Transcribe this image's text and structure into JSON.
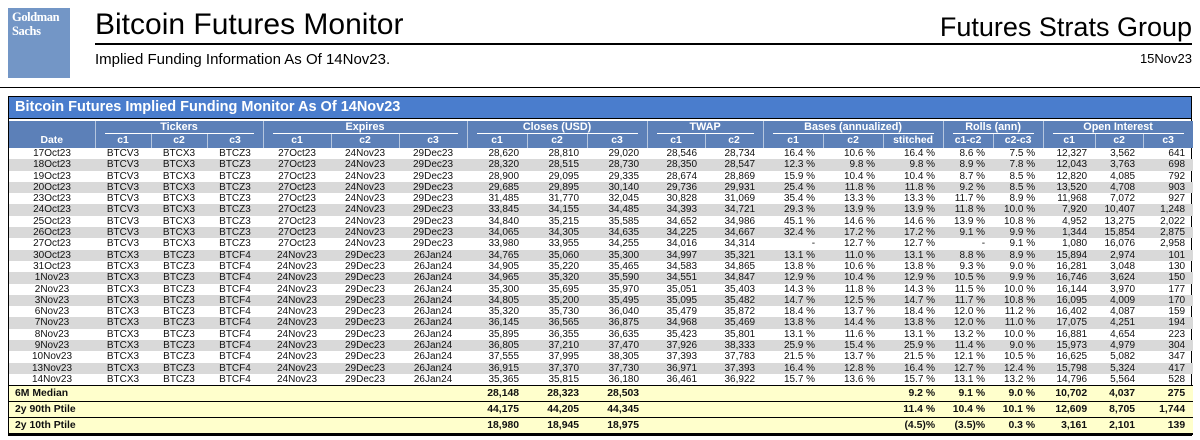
{
  "page": {
    "logo_line1": "Goldman",
    "logo_line2": "Sachs",
    "title": "Bitcoin Futures Monitor",
    "subtitle": "Implied Funding Information As Of 14Nov23.",
    "right_title": "Futures Strats Group",
    "right_date": "15Nov23"
  },
  "colors": {
    "brand_blue": "#7396c6",
    "title_bar_blue": "#4a7dcd",
    "header_blue": "#5c80b8",
    "stripe_gray": "#d9d9d9",
    "summary_yellow": "#ffffcc"
  },
  "monitor": {
    "title": "Bitcoin Futures Implied Funding Monitor As Of 14Nov23",
    "groups": [
      {
        "label": "",
        "span": 1
      },
      {
        "label": "Tickers",
        "span": 3
      },
      {
        "label": "Expires",
        "span": 3
      },
      {
        "label": "Closes (USD)",
        "span": 3
      },
      {
        "label": "TWAP",
        "span": 2
      },
      {
        "label": "Bases (annualized)",
        "span": 3
      },
      {
        "label": "Rolls (ann)",
        "span": 2
      },
      {
        "label": "Open Interest",
        "span": 3
      }
    ],
    "columns": [
      "Date",
      "c1",
      "c2",
      "c3",
      "c1",
      "c2",
      "c3",
      "c1",
      "c2",
      "c3",
      "c1",
      "c2",
      "c1",
      "c2",
      "stitched",
      "c1-c2",
      "c2-c3",
      "c1",
      "c2",
      "c3"
    ],
    "rows": [
      [
        "17Oct23",
        "BTCV3",
        "BTCX3",
        "BTCZ3",
        "27Oct23",
        "24Nov23",
        "29Dec23",
        "28,620",
        "28,810",
        "29,020",
        "28,546",
        "28,734",
        "16.4 %",
        "10.6 %",
        "16.4 %",
        "8.6 %",
        "7.5 %",
        "12,327",
        "3,562",
        "641"
      ],
      [
        "18Oct23",
        "BTCV3",
        "BTCX3",
        "BTCZ3",
        "27Oct23",
        "24Nov23",
        "29Dec23",
        "28,320",
        "28,515",
        "28,730",
        "28,350",
        "28,547",
        "12.3 %",
        "9.8 %",
        "9.8 %",
        "8.9 %",
        "7.8 %",
        "12,043",
        "3,763",
        "698"
      ],
      [
        "19Oct23",
        "BTCV3",
        "BTCX3",
        "BTCZ3",
        "27Oct23",
        "24Nov23",
        "29Dec23",
        "28,900",
        "29,095",
        "29,335",
        "28,674",
        "28,869",
        "15.9 %",
        "10.4 %",
        "10.4 %",
        "8.7 %",
        "8.5 %",
        "12,820",
        "4,085",
        "792"
      ],
      [
        "20Oct23",
        "BTCV3",
        "BTCX3",
        "BTCZ3",
        "27Oct23",
        "24Nov23",
        "29Dec23",
        "29,685",
        "29,895",
        "30,140",
        "29,736",
        "29,931",
        "25.4 %",
        "11.8 %",
        "11.8 %",
        "9.2 %",
        "8.5 %",
        "13,520",
        "4,708",
        "903"
      ],
      [
        "23Oct23",
        "BTCV3",
        "BTCX3",
        "BTCZ3",
        "27Oct23",
        "24Nov23",
        "29Dec23",
        "31,485",
        "31,770",
        "32,045",
        "30,828",
        "31,069",
        "35.4 %",
        "13.3 %",
        "13.3 %",
        "11.7 %",
        "8.9 %",
        "11,968",
        "7,072",
        "927"
      ],
      [
        "24Oct23",
        "BTCV3",
        "BTCX3",
        "BTCZ3",
        "27Oct23",
        "24Nov23",
        "29Dec23",
        "33,845",
        "34,155",
        "34,485",
        "34,393",
        "34,721",
        "29.3 %",
        "13.9 %",
        "13.9 %",
        "11.8 %",
        "10.0 %",
        "7,920",
        "10,407",
        "1,248"
      ],
      [
        "25Oct23",
        "BTCV3",
        "BTCX3",
        "BTCZ3",
        "27Oct23",
        "24Nov23",
        "29Dec23",
        "34,840",
        "35,215",
        "35,585",
        "34,652",
        "34,986",
        "45.1 %",
        "14.6 %",
        "14.6 %",
        "13.9 %",
        "10.8 %",
        "4,952",
        "13,275",
        "2,022"
      ],
      [
        "26Oct23",
        "BTCV3",
        "BTCX3",
        "BTCZ3",
        "27Oct23",
        "24Nov23",
        "29Dec23",
        "34,065",
        "34,305",
        "34,635",
        "34,225",
        "34,667",
        "32.4 %",
        "17.2 %",
        "17.2 %",
        "9.1 %",
        "9.9 %",
        "1,344",
        "15,854",
        "2,875"
      ],
      [
        "27Oct23",
        "BTCV3",
        "BTCX3",
        "BTCZ3",
        "27Oct23",
        "24Nov23",
        "29Dec23",
        "33,980",
        "33,955",
        "34,255",
        "34,016",
        "34,314",
        "-",
        "12.7 %",
        "12.7 %",
        "-",
        "9.1 %",
        "1,080",
        "16,076",
        "2,958"
      ],
      [
        "30Oct23",
        "BTCX3",
        "BTCZ3",
        "BTCF4",
        "24Nov23",
        "29Dec23",
        "26Jan24",
        "34,765",
        "35,060",
        "35,300",
        "34,997",
        "35,321",
        "13.1 %",
        "11.0 %",
        "13.1 %",
        "8.8 %",
        "8.9 %",
        "15,894",
        "2,974",
        "101"
      ],
      [
        "31Oct23",
        "BTCX3",
        "BTCZ3",
        "BTCF4",
        "24Nov23",
        "29Dec23",
        "26Jan24",
        "34,905",
        "35,220",
        "35,465",
        "34,583",
        "34,865",
        "13.8 %",
        "10.6 %",
        "13.8 %",
        "9.3 %",
        "9.0 %",
        "16,281",
        "3,048",
        "130"
      ],
      [
        "1Nov23",
        "BTCX3",
        "BTCZ3",
        "BTCF4",
        "24Nov23",
        "29Dec23",
        "26Jan24",
        "34,965",
        "35,320",
        "35,590",
        "34,551",
        "34,847",
        "12.9 %",
        "10.4 %",
        "12.9 %",
        "10.5 %",
        "9.9 %",
        "16,746",
        "3,624",
        "150"
      ],
      [
        "2Nov23",
        "BTCX3",
        "BTCZ3",
        "BTCF4",
        "24Nov23",
        "29Dec23",
        "26Jan24",
        "35,300",
        "35,695",
        "35,970",
        "35,051",
        "35,403",
        "14.3 %",
        "11.8 %",
        "14.3 %",
        "11.5 %",
        "10.0 %",
        "16,144",
        "3,970",
        "177"
      ],
      [
        "3Nov23",
        "BTCX3",
        "BTCZ3",
        "BTCF4",
        "24Nov23",
        "29Dec23",
        "26Jan24",
        "34,805",
        "35,200",
        "35,495",
        "35,095",
        "35,482",
        "14.7 %",
        "12.5 %",
        "14.7 %",
        "11.7 %",
        "10.8 %",
        "16,095",
        "4,009",
        "170"
      ],
      [
        "6Nov23",
        "BTCX3",
        "BTCZ3",
        "BTCF4",
        "24Nov23",
        "29Dec23",
        "26Jan24",
        "35,320",
        "35,730",
        "36,040",
        "35,479",
        "35,872",
        "18.4 %",
        "13.7 %",
        "18.4 %",
        "12.0 %",
        "11.2 %",
        "16,402",
        "4,087",
        "159"
      ],
      [
        "7Nov23",
        "BTCX3",
        "BTCZ3",
        "BTCF4",
        "24Nov23",
        "29Dec23",
        "26Jan24",
        "36,145",
        "36,565",
        "36,875",
        "34,968",
        "35,469",
        "13.8 %",
        "14.4 %",
        "13.8 %",
        "12.0 %",
        "11.0 %",
        "17,075",
        "4,251",
        "194"
      ],
      [
        "8Nov23",
        "BTCX3",
        "BTCZ3",
        "BTCF4",
        "24Nov23",
        "29Dec23",
        "26Jan24",
        "35,895",
        "36,355",
        "36,635",
        "35,423",
        "35,801",
        "13.1 %",
        "11.6 %",
        "13.1 %",
        "13.2 %",
        "10.0 %",
        "16,881",
        "4,654",
        "223"
      ],
      [
        "9Nov23",
        "BTCX3",
        "BTCZ3",
        "BTCF4",
        "24Nov23",
        "29Dec23",
        "26Jan24",
        "36,805",
        "37,210",
        "37,470",
        "37,926",
        "38,333",
        "25.9 %",
        "15.4 %",
        "25.9 %",
        "11.4 %",
        "9.0 %",
        "15,973",
        "4,979",
        "304"
      ],
      [
        "10Nov23",
        "BTCX3",
        "BTCZ3",
        "BTCF4",
        "24Nov23",
        "29Dec23",
        "26Jan24",
        "37,555",
        "37,995",
        "38,305",
        "37,393",
        "37,783",
        "21.5 %",
        "13.7 %",
        "21.5 %",
        "12.1 %",
        "10.5 %",
        "16,625",
        "5,082",
        "347"
      ],
      [
        "13Nov23",
        "BTCX3",
        "BTCZ3",
        "BTCF4",
        "24Nov23",
        "29Dec23",
        "26Jan24",
        "36,915",
        "37,370",
        "37,730",
        "36,971",
        "37,393",
        "16.4 %",
        "12.8 %",
        "16.4 %",
        "12.7 %",
        "12.4 %",
        "15,798",
        "5,324",
        "417"
      ],
      [
        "14Nov23",
        "BTCX3",
        "BTCZ3",
        "BTCF4",
        "24Nov23",
        "29Dec23",
        "26Jan24",
        "35,365",
        "35,815",
        "36,180",
        "36,461",
        "36,922",
        "15.7 %",
        "13.6 %",
        "15.7 %",
        "13.1 %",
        "13.2 %",
        "14,796",
        "5,564",
        "528"
      ]
    ],
    "summary_rows": [
      [
        "6M Median",
        "",
        "",
        "",
        "",
        "",
        "",
        "28,148",
        "28,323",
        "28,503",
        "",
        "",
        "",
        "",
        "9.2 %",
        "9.1 %",
        "9.0 %",
        "10,702",
        "4,037",
        "275"
      ],
      [
        "2y 90th Ptile",
        "",
        "",
        "",
        "",
        "",
        "",
        "44,175",
        "44,205",
        "44,345",
        "",
        "",
        "",
        "",
        "11.4 %",
        "10.4 %",
        "10.1 %",
        "12,609",
        "8,705",
        "1,744"
      ],
      [
        "2y 10th Ptile",
        "",
        "",
        "",
        "",
        "",
        "",
        "18,980",
        "18,945",
        "18,975",
        "",
        "",
        "",
        "",
        "(4.5)%",
        "(3.5)%",
        "0.3 %",
        "3,161",
        "2,101",
        "139"
      ]
    ]
  }
}
